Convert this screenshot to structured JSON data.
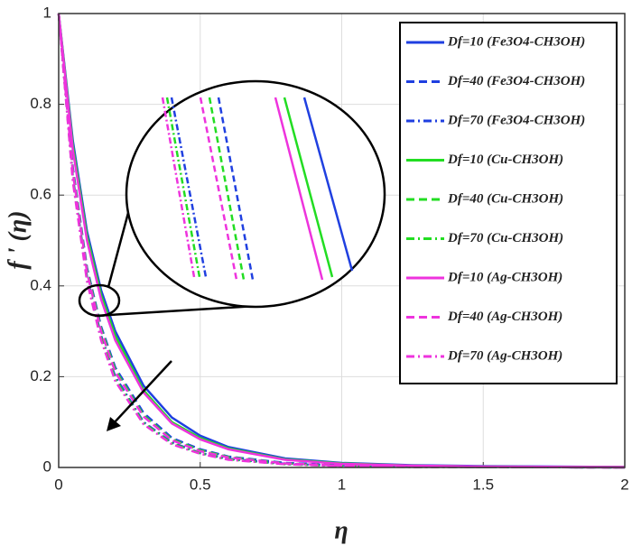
{
  "chart_data": {
    "type": "line",
    "x_label": "η",
    "y_label": "f ' (η)",
    "x": [
      0,
      0.05,
      0.1,
      0.15,
      0.2,
      0.3,
      0.4,
      0.5,
      0.6,
      0.8,
      1,
      1.25,
      1.5,
      2
    ],
    "xlim": [
      0,
      2
    ],
    "xticks": [
      0,
      0.5,
      1,
      1.5,
      2
    ],
    "ylim": [
      0,
      1
    ],
    "yticks": [
      0,
      0.2,
      0.4,
      0.6,
      0.8,
      1
    ],
    "grid": true,
    "legend": "upper right",
    "series": [
      {
        "name": "Df=10 (Fe3O4-CH3OH)",
        "color": "#1f3fe0",
        "dash": "solid",
        "values": [
          1,
          0.72,
          0.52,
          0.39,
          0.3,
          0.18,
          0.11,
          0.07,
          0.045,
          0.02,
          0.01,
          0.005,
          0.003,
          0.001
        ]
      },
      {
        "name": "Df=40 (Fe3O4-CH3OH)",
        "color": "#1f3fe0",
        "dash": "dashed",
        "values": [
          1,
          0.66,
          0.44,
          0.31,
          0.22,
          0.12,
          0.065,
          0.04,
          0.024,
          0.01,
          0.005,
          0.002,
          0.001,
          0
        ]
      },
      {
        "name": "Df=70 (Fe3O4-CH3OH)",
        "color": "#1f3fe0",
        "dash": "dashdot",
        "values": [
          1,
          0.64,
          0.42,
          0.29,
          0.2,
          0.1,
          0.055,
          0.032,
          0.019,
          0.008,
          0.004,
          0.002,
          0.001,
          0
        ]
      },
      {
        "name": "Df=10 (Cu-CH3OH)",
        "color": "#22dd22",
        "dash": "solid",
        "values": [
          1,
          0.71,
          0.51,
          0.38,
          0.29,
          0.17,
          0.1,
          0.065,
          0.042,
          0.018,
          0.009,
          0.004,
          0.002,
          0.001
        ]
      },
      {
        "name": "Df=40 (Cu-CH3OH)",
        "color": "#22dd22",
        "dash": "dashed",
        "values": [
          1,
          0.655,
          0.435,
          0.305,
          0.215,
          0.115,
          0.062,
          0.038,
          0.023,
          0.009,
          0.004,
          0.002,
          0.001,
          0
        ]
      },
      {
        "name": "Df=70 (Cu-CH3OH)",
        "color": "#22dd22",
        "dash": "dashdot",
        "values": [
          1,
          0.635,
          0.415,
          0.285,
          0.195,
          0.098,
          0.053,
          0.031,
          0.018,
          0.007,
          0.003,
          0.001,
          0.001,
          0
        ]
      },
      {
        "name": "Df=10 (Ag-CH3OH)",
        "color": "#ee33dd",
        "dash": "solid",
        "values": [
          1,
          0.7,
          0.5,
          0.37,
          0.28,
          0.165,
          0.097,
          0.062,
          0.04,
          0.017,
          0.008,
          0.004,
          0.002,
          0.001
        ]
      },
      {
        "name": "Df=40 (Ag-CH3OH)",
        "color": "#ee33dd",
        "dash": "dashed",
        "values": [
          1,
          0.65,
          0.43,
          0.3,
          0.21,
          0.112,
          0.06,
          0.036,
          0.022,
          0.009,
          0.004,
          0.002,
          0.001,
          0
        ]
      },
      {
        "name": "Df=70 (Ag-CH3OH)",
        "color": "#ee33dd",
        "dash": "dashdot",
        "values": [
          1,
          0.63,
          0.41,
          0.28,
          0.19,
          0.095,
          0.051,
          0.03,
          0.017,
          0.007,
          0.003,
          0.001,
          0.001,
          0
        ]
      }
    ]
  }
}
